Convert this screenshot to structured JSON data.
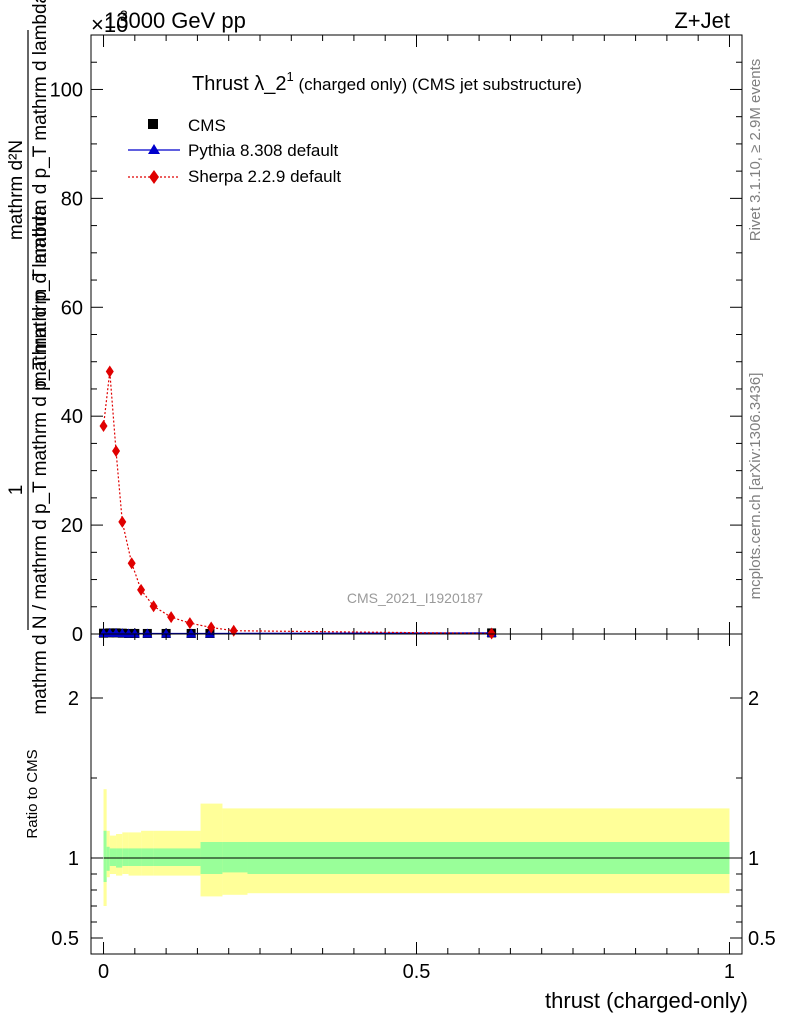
{
  "header": {
    "energy_label": "13000 GeV pp",
    "scale_label": "×10",
    "scale_exponent": "3",
    "process_label": "Z+Jet"
  },
  "side_labels": {
    "rivet": "Rivet 3.1.10, ≥ 2.9M events",
    "mcplots": "mcplots.cern.ch [arXiv:1306.3436]"
  },
  "chart_data": [
    {
      "type": "line",
      "title_main": "Thrust λ_2",
      "title_sup": "1",
      "title_rest": " (charged only) (CMS jet substructure)",
      "watermark": "CMS_2021_I1920187",
      "ylabel_num": "1",
      "ylabel_den": "mathrm d N / mathrm d p_T mathrm d p_T mathrm d lambda",
      "ylabel_top": "mathrm d²N",
      "ylabel_mid": "mathrm d p_T mathrm d p_T mathrm d lambda",
      "ylim": [
        0,
        110
      ],
      "y_ticks": [
        0,
        20,
        40,
        60,
        80,
        100
      ],
      "y_tick_labels": [
        "0",
        "20",
        "40",
        "60",
        "80",
        "100"
      ],
      "xlim": [
        -0.02,
        1.02
      ],
      "legend_position": "top-left",
      "series": [
        {
          "name": "CMS",
          "color": "#000000",
          "marker": "square",
          "x": [
            0.0,
            0.01,
            0.02,
            0.03,
            0.04,
            0.05,
            0.07,
            0.1,
            0.14,
            0.17,
            0.62
          ],
          "y": [
            0.15,
            0.2,
            0.2,
            0.15,
            0.1,
            0.1,
            0.1,
            0.1,
            0.1,
            0.1,
            0.2
          ]
        },
        {
          "name": "Pythia 8.308 default",
          "color": "#0000cc",
          "marker": "triangle",
          "x": [
            0.0,
            0.01,
            0.02,
            0.03,
            0.04,
            0.05,
            0.07,
            0.1,
            0.14,
            0.17,
            0.62
          ],
          "y": [
            0.15,
            0.2,
            0.2,
            0.15,
            0.1,
            0.1,
            0.1,
            0.1,
            0.1,
            0.1,
            0.2
          ]
        },
        {
          "name": "Sherpa 2.2.9 default",
          "color": "#e00000",
          "marker": "diamond",
          "x": [
            0.0,
            0.01,
            0.02,
            0.03,
            0.045,
            0.06,
            0.08,
            0.108,
            0.138,
            0.172,
            0.208,
            0.62
          ],
          "y": [
            38.2,
            48.2,
            33.6,
            20.6,
            13.0,
            8.1,
            5.1,
            3.1,
            2.0,
            1.2,
            0.6,
            0.1
          ]
        }
      ]
    },
    {
      "type": "area",
      "ylabel": "Ratio to CMS",
      "xlabel": "thrust (charged-only)",
      "ylim": [
        0.4,
        2.4
      ],
      "y_ticks": [
        0.5,
        1,
        2
      ],
      "y_tick_labels": [
        "0.5",
        "1",
        "2"
      ],
      "x_ticks": [
        0,
        0.5,
        1
      ],
      "x_tick_labels": [
        "0",
        "0.5",
        "1"
      ],
      "xlim": [
        -0.02,
        1.02
      ],
      "bands": {
        "edges": [
          0.0,
          0.005,
          0.01,
          0.02,
          0.03,
          0.04,
          0.06,
          0.08,
          0.155,
          0.19,
          0.23,
          1.0
        ],
        "inner_color": "#99ff99",
        "outer_color": "#ffff99",
        "inner_lo": [
          0.85,
          0.92,
          0.95,
          0.94,
          0.95,
          0.95,
          0.95,
          0.95,
          0.9,
          0.91,
          0.9
        ],
        "inner_hi": [
          1.17,
          1.07,
          1.06,
          1.06,
          1.06,
          1.06,
          1.06,
          1.06,
          1.1,
          1.1,
          1.1
        ],
        "outer_lo": [
          0.7,
          0.88,
          0.9,
          0.89,
          0.9,
          0.89,
          0.89,
          0.89,
          0.76,
          0.77,
          0.78
        ],
        "outer_hi": [
          1.43,
          1.17,
          1.14,
          1.15,
          1.16,
          1.16,
          1.17,
          1.17,
          1.34,
          1.31,
          1.31
        ]
      },
      "reference_line": 1
    }
  ]
}
